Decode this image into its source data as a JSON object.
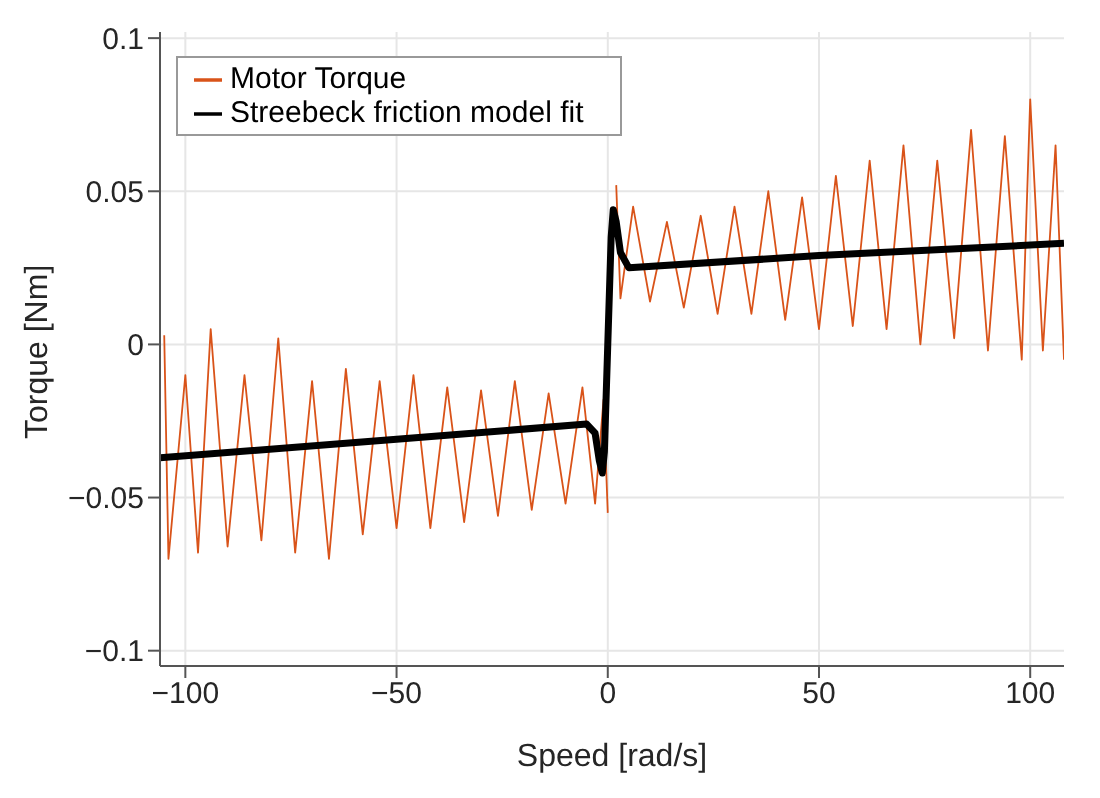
{
  "chart_data": {
    "type": "line",
    "xlabel": "Speed [rad/s]",
    "ylabel": "Torque [Nm]",
    "xlim": [
      -106,
      108
    ],
    "xticks": [
      {
        "value": -100,
        "label": "−100"
      },
      {
        "value": -50,
        "label": "−50"
      },
      0,
      50,
      100
    ],
    "ylim": [
      -0.105,
      0.102
    ],
    "yticks": [
      {
        "value": -0.1,
        "label": "−0.1"
      },
      {
        "value": -0.05,
        "label": "−0.05"
      },
      0,
      0.05,
      0.1
    ],
    "grid": true,
    "legend": "top left",
    "marker": "none",
    "line_style": "solid",
    "series": [
      {
        "name": "Motor Torque",
        "color": "#d95319",
        "x": [
          -105,
          -104,
          -100,
          -97,
          -94,
          -90,
          -86,
          -82,
          -78,
          -74,
          -70,
          -66,
          -62,
          -58,
          -54,
          -50,
          -46,
          -42,
          -38,
          -34,
          -30,
          -26,
          -22,
          -18,
          -14,
          -10,
          -6,
          -3,
          -1,
          0,
          1,
          2,
          3,
          6,
          10,
          14,
          18,
          22,
          26,
          30,
          34,
          38,
          42,
          46,
          50,
          54,
          58,
          62,
          66,
          70,
          74,
          78,
          82,
          86,
          90,
          94,
          98,
          100,
          103,
          106,
          108
        ],
        "values": [
          0.003,
          -0.07,
          -0.01,
          -0.068,
          0.005,
          -0.066,
          -0.01,
          -0.064,
          0.002,
          -0.068,
          -0.012,
          -0.07,
          -0.008,
          -0.062,
          -0.012,
          -0.06,
          -0.01,
          -0.06,
          -0.014,
          -0.058,
          -0.015,
          -0.056,
          -0.012,
          -0.054,
          -0.016,
          -0.052,
          -0.014,
          -0.052,
          -0.018,
          -0.055,
          null,
          0.052,
          0.015,
          0.045,
          0.014,
          0.04,
          0.012,
          0.042,
          0.01,
          0.045,
          0.01,
          0.05,
          0.008,
          0.048,
          0.005,
          0.055,
          0.006,
          0.06,
          0.005,
          0.065,
          0.0,
          0.06,
          0.002,
          0.07,
          -0.002,
          0.068,
          -0.005,
          0.08,
          -0.002,
          0.065,
          -0.005
        ]
      },
      {
        "name": "Streebeck friction model fit",
        "color": "#000000",
        "x": [
          -106,
          -50,
          -5,
          -3,
          -2,
          -1.3,
          -0.8,
          0,
          0.8,
          1.3,
          2,
          3,
          5,
          50,
          108
        ],
        "values": [
          -0.037,
          -0.031,
          -0.026,
          -0.029,
          -0.038,
          -0.042,
          -0.035,
          0,
          0.035,
          0.044,
          0.04,
          0.03,
          0.025,
          0.029,
          0.033
        ]
      }
    ]
  }
}
